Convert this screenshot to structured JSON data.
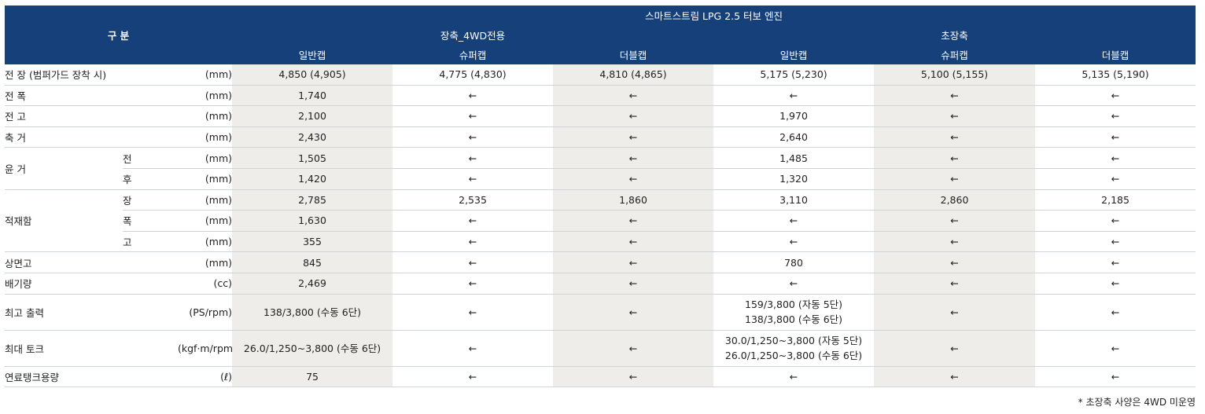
{
  "header": {
    "gubun": "구 분",
    "engine": "스마트스트림 LPG 2.5 터보 엔진",
    "groups": [
      "장축_4WD전용",
      "초장축"
    ],
    "cabs": [
      "일반캡",
      "슈퍼캡",
      "더블캡",
      "일반캡",
      "슈퍼캡",
      "더블캡"
    ]
  },
  "rows": {
    "length": {
      "cat": "전 장 (범퍼가드 장착 시)",
      "unit": "(mm)",
      "v": [
        "4,850 (4,905)",
        "4,775 (4,830)",
        "4,810 (4,865)",
        "5,175 (5,230)",
        "5,100 (5,155)",
        "5,135 (5,190)"
      ]
    },
    "width": {
      "cat": "전 폭",
      "unit": "(mm)",
      "v": [
        "1,740",
        "←",
        "←",
        "←",
        "←",
        "←"
      ]
    },
    "height": {
      "cat": "전 고",
      "unit": "(mm)",
      "v": [
        "2,100",
        "←",
        "←",
        "1,970",
        "←",
        "←"
      ]
    },
    "wheelbase": {
      "cat": "축 거",
      "unit": "(mm)",
      "v": [
        "2,430",
        "←",
        "←",
        "2,640",
        "←",
        "←"
      ]
    },
    "tread": {
      "cat": "윤 거"
    },
    "tread_f": {
      "sub": "전",
      "unit": "(mm)",
      "v": [
        "1,505",
        "←",
        "←",
        "1,485",
        "←",
        "←"
      ]
    },
    "tread_r": {
      "sub": "후",
      "unit": "(mm)",
      "v": [
        "1,420",
        "←",
        "←",
        "1,320",
        "←",
        "←"
      ]
    },
    "cargo": {
      "cat": "적재함"
    },
    "cargo_l": {
      "sub": "장",
      "unit": "(mm)",
      "v": [
        "2,785",
        "2,535",
        "1,860",
        "3,110",
        "2,860",
        "2,185"
      ]
    },
    "cargo_w": {
      "sub": "폭",
      "unit": "(mm)",
      "v": [
        "1,630",
        "←",
        "←",
        "←",
        "←",
        "←"
      ]
    },
    "cargo_h": {
      "sub": "고",
      "unit": "(mm)",
      "v": [
        "355",
        "←",
        "←",
        "←",
        "←",
        "←"
      ]
    },
    "deck": {
      "cat": "상면고",
      "unit": "(mm)",
      "v": [
        "845",
        "←",
        "←",
        "780",
        "←",
        "←"
      ]
    },
    "disp": {
      "cat": "배기량",
      "unit": "(cc)",
      "v": [
        "2,469",
        "←",
        "←",
        "←",
        "←",
        "←"
      ]
    },
    "power": {
      "cat": "최고 출력",
      "unit": "(PS/rpm)",
      "v": [
        "138/3,800 (수동 6단)",
        "←",
        "←",
        "159/3,800 (자동 5단)",
        "←",
        "←"
      ],
      "v3b": "138/3,800 (수동 6단)"
    },
    "torque": {
      "cat": "최대 토크",
      "unit": "(kgf·m/rpm)",
      "v": [
        "26.0/1,250~3,800 (수동 6단)",
        "←",
        "←",
        "30.0/1,250~3,800 (자동 5단)",
        "←",
        "←"
      ],
      "v3b": "26.0/1,250~3,800 (수동 6단)"
    },
    "fuel": {
      "cat": "연료탱크용량",
      "unit": "(ℓ)",
      "v": [
        "75",
        "←",
        "←",
        "←",
        "←",
        "←"
      ]
    }
  },
  "note": "* 초장축 사양은 4WD 미운영"
}
